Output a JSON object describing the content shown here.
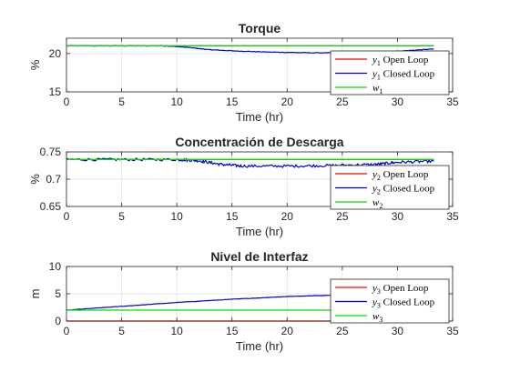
{
  "chart_data": [
    {
      "type": "line",
      "title": "Torque",
      "xlabel": "Time (hr)",
      "ylabel": "%",
      "xlim": [
        0,
        35
      ],
      "ylim": [
        15,
        22
      ],
      "xticks": [
        "0",
        "5",
        "10",
        "15",
        "20",
        "25",
        "30",
        "35"
      ],
      "yticks": [
        {
          "v": 15,
          "label": "15"
        },
        {
          "v": 20,
          "label": "20"
        }
      ],
      "grid": true,
      "legend_location": "bottom-right",
      "series": [
        {
          "name": "y1 Open Loop",
          "label_var": "y",
          "label_sub": "1",
          "label_rest": "Open Loop",
          "color": "#ff0000",
          "x": [
            0,
            33.3
          ],
          "y": [
            21,
            21
          ]
        },
        {
          "name": "y1 Closed Loop",
          "label_var": "y",
          "label_sub": "1",
          "label_rest": "Closed Loop",
          "color": "#0000cc",
          "x": [
            0,
            5,
            9,
            11,
            13,
            15,
            18,
            22,
            26,
            30,
            33.3
          ],
          "y": [
            21.0,
            21.0,
            21.0,
            20.8,
            20.5,
            20.35,
            20.2,
            20.1,
            20.1,
            20.3,
            20.6
          ],
          "noise": 0.04
        },
        {
          "name": "w1",
          "label_var": "w",
          "label_sub": "1",
          "label_rest": "",
          "color": "#00dd00",
          "x": [
            0,
            33.3
          ],
          "y": [
            21,
            21
          ]
        }
      ]
    },
    {
      "type": "line",
      "title": "Concentración de Descarga",
      "xlabel": "Time (hr)",
      "ylabel": "%",
      "xlim": [
        0,
        35
      ],
      "ylim": [
        0.65,
        0.75
      ],
      "xticks": [
        "0",
        "5",
        "10",
        "15",
        "20",
        "25",
        "30",
        "35"
      ],
      "yticks": [
        {
          "v": 0.65,
          "label": "0.65"
        },
        {
          "v": 0.7,
          "label": "0.7"
        },
        {
          "v": 0.75,
          "label": "0.75"
        }
      ],
      "grid": true,
      "legend_location": "bottom-right",
      "series": [
        {
          "name": "y2 Open Loop",
          "label_var": "y",
          "label_sub": "2",
          "label_rest": "Open Loop",
          "color": "#ff0000",
          "x": [
            0,
            33.3
          ],
          "y": [
            0.736,
            0.736
          ]
        },
        {
          "name": "y2 Closed Loop",
          "label_var": "y",
          "label_sub": "2",
          "label_rest": "Closed Loop",
          "color": "#0000cc",
          "x": [
            0,
            5,
            10,
            12,
            14,
            16,
            20,
            24,
            28,
            30,
            33.3
          ],
          "y": [
            0.736,
            0.736,
            0.736,
            0.734,
            0.727,
            0.724,
            0.724,
            0.725,
            0.727,
            0.731,
            0.733
          ],
          "noise": 0.0025
        },
        {
          "name": "w2",
          "label_var": "w",
          "label_sub": "2",
          "label_rest": "",
          "color": "#00dd00",
          "x": [
            0,
            33.3
          ],
          "y": [
            0.736,
            0.736
          ]
        }
      ]
    },
    {
      "type": "line",
      "title": "Nivel de Interfaz",
      "xlabel": "Time (hr)",
      "ylabel": "m",
      "xlim": [
        0,
        35
      ],
      "ylim": [
        0,
        10
      ],
      "xticks": [
        "0",
        "5",
        "10",
        "15",
        "20",
        "25",
        "30",
        "35"
      ],
      "yticks": [
        {
          "v": 0,
          "label": "0"
        },
        {
          "v": 5,
          "label": "5"
        },
        {
          "v": 10,
          "label": "10"
        }
      ],
      "grid": true,
      "legend_location": "top-right",
      "series": [
        {
          "name": "y3 Open Loop",
          "label_var": "y",
          "label_sub": "3",
          "label_rest": "Open Loop",
          "color": "#ff0000",
          "x": [
            0,
            33.3
          ],
          "y": [
            0,
            0
          ]
        },
        {
          "name": "y3 Closed Loop",
          "label_var": "y",
          "label_sub": "3",
          "label_rest": "Closed Loop",
          "color": "#0000cc",
          "x": [
            0,
            5,
            10,
            15,
            20,
            25,
            30,
            33.3
          ],
          "y": [
            2.0,
            2.7,
            3.4,
            4.0,
            4.5,
            4.8,
            5.0,
            5.1
          ],
          "noise": 0.03
        },
        {
          "name": "w3",
          "label_var": "w",
          "label_sub": "3",
          "label_rest": "",
          "color": "#00dd00",
          "x": [
            0,
            33.3
          ],
          "y": [
            2.0,
            2.0
          ]
        }
      ]
    }
  ]
}
